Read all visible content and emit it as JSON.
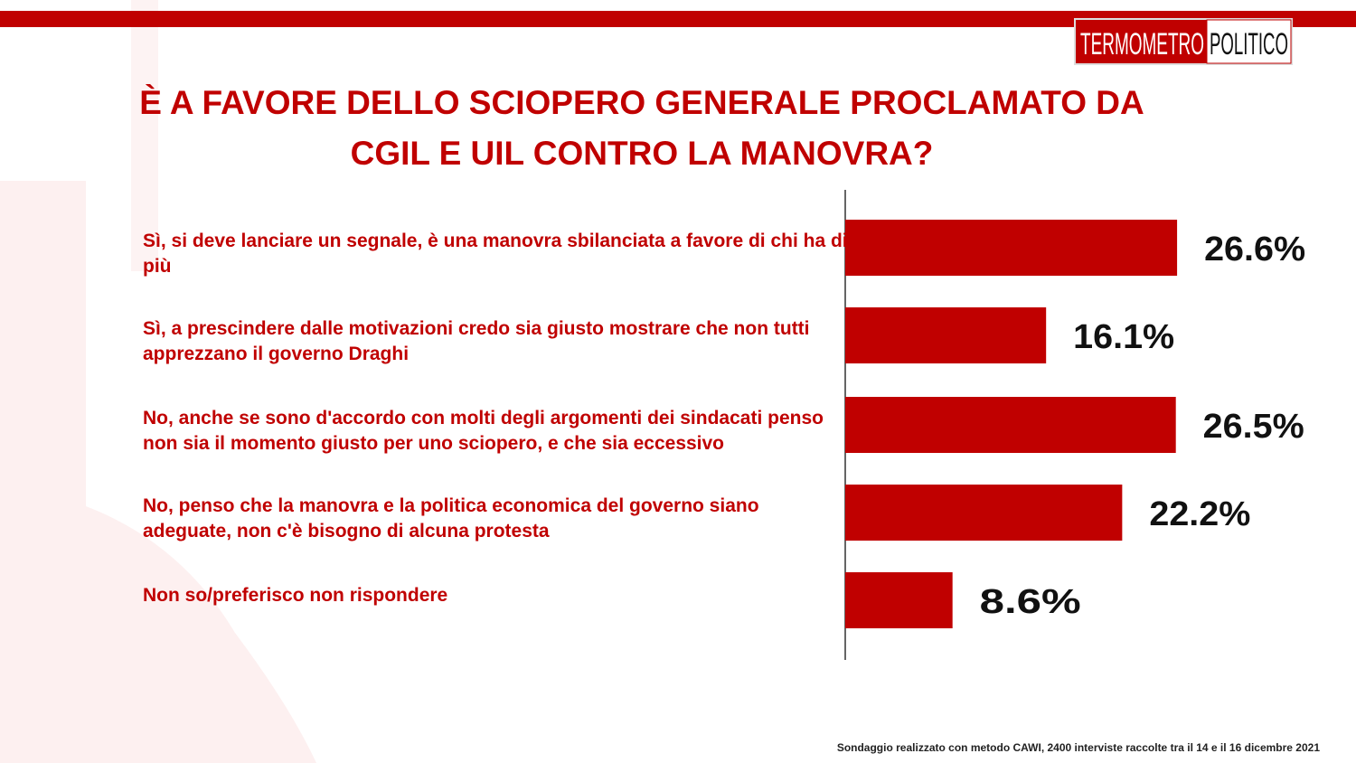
{
  "chart_data": {
    "type": "bar",
    "orientation": "horizontal",
    "title": "È A FAVORE DELLO SCIOPERO GENERALE PROCLAMATO DA CGIL E UIL CONTRO LA MANOVRA?",
    "logo": [
      "TERMOMETRO",
      "POLITICO"
    ],
    "categories": [
      "Sì, si deve lanciare un segnale, è una manovra sbilanciata a favore di chi ha di più",
      "Sì, a prescindere dalle motivazioni credo sia giusto mostrare che non tutti apprezzano il governo Draghi",
      "No, anche se sono d'accordo con molti degli argomenti dei sindacati penso non sia il momento giusto per uno sciopero, e che sia eccessivo",
      "No, penso che la manovra e la politica economica del governo siano adeguate, non c'è bisogno di alcuna protesta",
      "Non so/preferisco non rispondere"
    ],
    "values": [
      26.6,
      16.1,
      26.5,
      22.2,
      8.6
    ],
    "value_labels": [
      "26.6%",
      "16.1%",
      "26.5%",
      "22.2%",
      "8.6%"
    ],
    "color": "#c00000",
    "xlim": [
      0,
      40
    ],
    "footnote": "Sondaggio realizzato con metodo CAWI, 2400 interviste raccolte tra il 14 e il 16 dicembre 2021"
  }
}
